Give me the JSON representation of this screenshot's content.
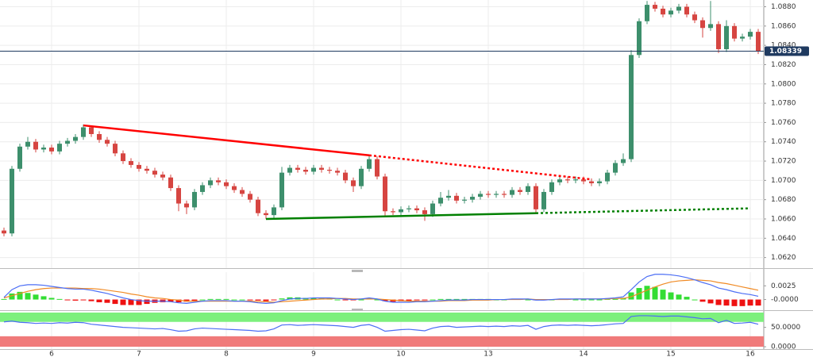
{
  "chart_data": [
    {
      "type": "candlestick",
      "categories": [
        null,
        null,
        null,
        null,
        null,
        null,
        "6",
        null,
        null,
        null,
        null,
        null,
        null,
        null,
        null,
        null,
        null,
        "7",
        null,
        null,
        null,
        null,
        null,
        null,
        null,
        null,
        null,
        null,
        "8",
        null,
        null,
        null,
        null,
        null,
        null,
        null,
        null,
        null,
        null,
        "9",
        null,
        null,
        null,
        null,
        null,
        null,
        null,
        null,
        null,
        null,
        "10",
        null,
        null,
        null,
        null,
        null,
        null,
        null,
        null,
        null,
        null,
        "13",
        null,
        null,
        null,
        null,
        null,
        null,
        null,
        null,
        null,
        null,
        null,
        "14",
        null,
        null,
        null,
        null,
        null,
        null,
        null,
        null,
        null,
        null,
        "15",
        null,
        null,
        null,
        null,
        null,
        null,
        null,
        null,
        null,
        "16",
        null
      ],
      "candles": {
        "open": [
          1.0648,
          1.0645,
          1.0712,
          1.0735,
          1.074,
          1.0732,
          1.0734,
          1.073,
          1.0738,
          1.0741,
          1.0745,
          1.0755,
          1.0748,
          1.0742,
          1.0738,
          1.0728,
          1.072,
          1.0716,
          1.0712,
          1.071,
          1.0706,
          1.0703,
          1.0692,
          1.0676,
          1.0672,
          1.0688,
          1.0695,
          1.07,
          1.0698,
          1.0694,
          1.069,
          1.0686,
          1.068,
          1.0666,
          1.0664,
          1.0672,
          1.0708,
          1.0713,
          1.0711,
          1.0709,
          1.0713,
          1.0711,
          1.071,
          1.0708,
          1.07,
          1.0694,
          1.0712,
          1.0722,
          1.0704,
          1.0668,
          1.0667,
          1.067,
          1.0671,
          1.0669,
          1.0665,
          1.0676,
          1.0682,
          1.0684,
          1.0679,
          1.068,
          1.0683,
          1.0686,
          1.0685,
          1.0686,
          1.0685,
          1.069,
          1.0688,
          1.0694,
          1.067,
          1.0688,
          1.0698,
          1.0701,
          1.07,
          1.0701,
          1.0699,
          1.0697,
          1.0699,
          1.0708,
          1.0718,
          1.0722,
          1.083,
          1.0865,
          1.0882,
          1.0878,
          1.0872,
          1.0876,
          1.088,
          1.0872,
          1.0866,
          1.0858,
          1.0862,
          1.0836,
          1.086,
          1.0847,
          1.0849,
          1.0854
        ],
        "high": [
          1.0651,
          1.0715,
          1.0738,
          1.0745,
          1.0743,
          1.0737,
          1.0737,
          1.0741,
          1.0744,
          1.0748,
          1.0758,
          1.0757,
          1.0751,
          1.0745,
          1.0741,
          1.0731,
          1.0723,
          1.0719,
          1.0715,
          1.0713,
          1.0709,
          1.0706,
          1.0695,
          1.0679,
          1.0691,
          1.0698,
          1.0703,
          1.0703,
          1.0701,
          1.0697,
          1.0693,
          1.0689,
          1.0683,
          1.0669,
          1.0675,
          1.0714,
          1.0716,
          1.0716,
          1.0714,
          1.0716,
          1.0716,
          1.0714,
          1.0713,
          1.0711,
          1.0703,
          1.0715,
          1.0726,
          1.0725,
          1.0707,
          1.0671,
          1.0673,
          1.0674,
          1.0674,
          1.0672,
          1.0679,
          1.0688,
          1.069,
          1.0687,
          1.0683,
          1.0686,
          1.0689,
          1.0689,
          1.0689,
          1.0689,
          1.0693,
          1.0693,
          1.0697,
          1.0697,
          1.0691,
          1.0701,
          1.0704,
          1.0704,
          1.0704,
          1.0704,
          1.0702,
          1.0702,
          1.0711,
          1.0721,
          1.0728,
          1.0835,
          1.0868,
          1.0886,
          1.0885,
          1.0881,
          1.0879,
          1.0883,
          1.0883,
          1.0875,
          1.0869,
          1.0886,
          1.0865,
          1.0866,
          1.0863,
          1.0852,
          1.0857,
          1.0857
        ],
        "low": [
          1.0642,
          1.0642,
          1.0709,
          1.0732,
          1.0729,
          1.0729,
          1.0727,
          1.0727,
          1.0735,
          1.0738,
          1.0742,
          1.0745,
          1.0739,
          1.0735,
          1.0725,
          1.0717,
          1.0713,
          1.0709,
          1.0707,
          1.0703,
          1.07,
          1.0689,
          1.0668,
          1.0665,
          1.0669,
          1.0685,
          1.0692,
          1.0695,
          1.0691,
          1.0687,
          1.0683,
          1.0677,
          1.0663,
          1.066,
          1.0661,
          1.0669,
          1.0705,
          1.0708,
          1.0706,
          1.0706,
          1.0708,
          1.0707,
          1.0705,
          1.0697,
          1.0688,
          1.0691,
          1.0709,
          1.0701,
          1.0663,
          1.0664,
          1.0664,
          1.0667,
          1.0666,
          1.0658,
          1.0662,
          1.0673,
          1.0679,
          1.0676,
          1.0676,
          1.0677,
          1.068,
          1.0682,
          1.0682,
          1.0682,
          1.0682,
          1.0685,
          1.0685,
          1.0666,
          1.0667,
          1.0685,
          1.0695,
          1.0697,
          1.0697,
          1.0696,
          1.0694,
          1.0694,
          1.0696,
          1.0705,
          1.0715,
          1.0719,
          1.0827,
          1.0862,
          1.0875,
          1.0869,
          1.0869,
          1.0873,
          1.0869,
          1.0863,
          1.0848,
          1.0855,
          1.0832,
          1.0833,
          1.0844,
          1.0844,
          1.0846,
          1.0831
        ],
        "close": [
          1.0645,
          1.0712,
          1.0735,
          1.074,
          1.0732,
          1.0734,
          1.073,
          1.0738,
          1.0741,
          1.0745,
          1.0755,
          1.0748,
          1.0742,
          1.0738,
          1.0728,
          1.072,
          1.0716,
          1.0712,
          1.071,
          1.0706,
          1.0703,
          1.0692,
          1.0676,
          1.0672,
          1.0688,
          1.0695,
          1.07,
          1.0698,
          1.0694,
          1.069,
          1.0686,
          1.068,
          1.0666,
          1.0664,
          1.0672,
          1.0708,
          1.0713,
          1.0711,
          1.0709,
          1.0713,
          1.0711,
          1.071,
          1.0708,
          1.07,
          1.0694,
          1.0712,
          1.0722,
          1.0704,
          1.0668,
          1.0667,
          1.067,
          1.0671,
          1.0669,
          1.0665,
          1.0676,
          1.0682,
          1.0684,
          1.0679,
          1.068,
          1.0683,
          1.0686,
          1.0685,
          1.0686,
          1.0685,
          1.069,
          1.0688,
          1.0694,
          1.067,
          1.0688,
          1.0698,
          1.0701,
          1.07,
          1.0701,
          1.0699,
          1.0697,
          1.0699,
          1.0708,
          1.0718,
          1.0722,
          1.083,
          1.0865,
          1.0882,
          1.0878,
          1.0872,
          1.0876,
          1.088,
          1.0872,
          1.0866,
          1.0858,
          1.0862,
          1.0836,
          1.086,
          1.0847,
          1.0849,
          1.0854,
          1.0834
        ]
      },
      "up_color": "#3d8f6c",
      "down_color": "#d64541",
      "ylim": [
        1.0609,
        1.0887
      ],
      "yticks": [
        {
          "value": 1.062,
          "label": "1.0620"
        },
        {
          "value": 1.064,
          "label": "1.0640"
        },
        {
          "value": 1.066,
          "label": "1.0660"
        },
        {
          "value": 1.068,
          "label": "1.0680"
        },
        {
          "value": 1.07,
          "label": "1.0700"
        },
        {
          "value": 1.072,
          "label": "1.0720"
        },
        {
          "value": 1.074,
          "label": "1.0740"
        },
        {
          "value": 1.076,
          "label": "1.0760"
        },
        {
          "value": 1.078,
          "label": "1.0780"
        },
        {
          "value": 1.08,
          "label": "1.0800"
        },
        {
          "value": 1.082,
          "label": "1.0820"
        },
        {
          "value": 1.084,
          "label": "1.0840"
        },
        {
          "value": 1.086,
          "label": "1.0860"
        },
        {
          "value": 1.088,
          "label": "1.0880"
        }
      ],
      "grid": true,
      "last_price": 1.08339,
      "last_price_color": "#1f3a60",
      "trendlines": [
        {
          "color": "#ff0000",
          "from": [
            10,
            1.0757
          ],
          "to": [
            46,
            1.0726
          ],
          "extend_to": [
            74,
            1.0701
          ]
        },
        {
          "color": "#008000",
          "from": [
            33,
            1.066
          ],
          "to": [
            67,
            1.0666
          ],
          "extend_to": [
            94,
            1.0671
          ]
        }
      ]
    },
    {
      "type": "macd",
      "macd": [
        0.0004,
        0.0018,
        0.0025,
        0.0027,
        0.0027,
        0.0026,
        0.0024,
        0.0022,
        0.002,
        0.0019,
        0.0019,
        0.0017,
        0.0014,
        0.0011,
        0.0007,
        0.0003,
        0.0,
        -0.0002,
        -0.0003,
        -0.0003,
        -0.0003,
        -0.0004,
        -0.0006,
        -0.0007,
        -0.0005,
        -0.0003,
        -0.0002,
        -0.0002,
        -0.0002,
        -0.0003,
        -0.0003,
        -0.0004,
        -0.0006,
        -0.0007,
        -0.0006,
        -0.0002,
        0.0001,
        0.0002,
        0.0002,
        0.0003,
        0.0003,
        0.0003,
        0.0002,
        0.0001,
        0.0,
        0.0001,
        0.0003,
        0.0001,
        -0.0003,
        -0.0005,
        -0.0005,
        -0.0005,
        -0.0004,
        -0.0004,
        -0.0003,
        -0.0002,
        -0.0001,
        -0.0001,
        -0.0001,
        0.0,
        0.0,
        0.0,
        0.0,
        0.0,
        0.0001,
        0.0001,
        0.0001,
        -0.0001,
        -0.0001,
        0.0,
        0.0001,
        0.0001,
        0.0001,
        0.0001,
        0.0001,
        0.0001,
        0.0002,
        0.0003,
        0.0005,
        0.0018,
        0.0032,
        0.0042,
        0.0046,
        0.0046,
        0.0045,
        0.0043,
        0.004,
        0.0036,
        0.0031,
        0.0027,
        0.0021,
        0.0018,
        0.0014,
        0.0011,
        0.0009,
        0.0006
      ],
      "signal": [
        0.0003,
        0.0007,
        0.0011,
        0.0015,
        0.0018,
        0.002,
        0.0021,
        0.0021,
        0.0021,
        0.0021,
        0.002,
        0.002,
        0.0019,
        0.0017,
        0.0015,
        0.0013,
        0.001,
        0.0008,
        0.0005,
        0.0003,
        0.0002,
        0.0,
        -0.0001,
        -0.0003,
        -0.0003,
        -0.0003,
        -0.0003,
        -0.0003,
        -0.0003,
        -0.0003,
        -0.0003,
        -0.0003,
        -0.0004,
        -0.0004,
        -0.0005,
        -0.0004,
        -0.0003,
        -0.0002,
        -0.0001,
        0.0,
        0.0001,
        0.0001,
        0.0002,
        0.0002,
        0.0001,
        0.0001,
        0.0001,
        0.0001,
        0.0,
        -0.0001,
        -0.0002,
        -0.0003,
        -0.0003,
        -0.0003,
        -0.0003,
        -0.0003,
        -0.0002,
        -0.0002,
        -0.0002,
        -0.0001,
        -0.0001,
        -0.0001,
        0.0,
        0.0,
        0.0,
        0.0,
        0.0001,
        0.0,
        0.0,
        0.0,
        0.0,
        0.0,
        0.0001,
        0.0001,
        0.0001,
        0.0001,
        0.0001,
        0.0002,
        0.0002,
        0.0005,
        0.0011,
        0.0017,
        0.0023,
        0.0028,
        0.0032,
        0.0034,
        0.0035,
        0.0036,
        0.0035,
        0.0034,
        0.0031,
        0.0029,
        0.0026,
        0.0023,
        0.002,
        0.0017
      ],
      "histogram": [
        0.0001,
        0.0011,
        0.0014,
        0.0012,
        0.0009,
        0.0006,
        0.0003,
        0.0001,
        -0.0001,
        -0.0002,
        -0.0001,
        -0.0003,
        -0.0005,
        -0.0006,
        -0.0008,
        -0.001,
        -0.001,
        -0.001,
        -0.0008,
        -0.0006,
        -0.0005,
        -0.0004,
        -0.0005,
        -0.0004,
        -0.0002,
        0.0,
        0.0001,
        0.0001,
        0.0001,
        0.0,
        0.0,
        -0.0001,
        -0.0002,
        -0.0003,
        -0.0001,
        0.0002,
        0.0004,
        0.0004,
        0.0003,
        0.0003,
        0.0002,
        0.0002,
        0.0,
        -0.0001,
        -0.0001,
        0.0,
        0.0002,
        0.0,
        -0.0003,
        -0.0004,
        -0.0003,
        -0.0002,
        -0.0001,
        -0.0001,
        0.0,
        0.0001,
        0.0001,
        0.0001,
        0.0001,
        0.0001,
        0.0001,
        0.0001,
        0.0,
        0.0,
        0.0001,
        0.0001,
        0.0,
        -0.0001,
        -0.0001,
        0.0,
        0.0001,
        0.0001,
        0.0,
        0.0,
        0.0,
        0.0,
        0.0001,
        0.0001,
        0.0003,
        0.0013,
        0.0021,
        0.0025,
        0.0023,
        0.0018,
        0.0013,
        0.0009,
        0.0005,
        0.0,
        -0.0004,
        -0.0007,
        -0.001,
        -0.0011,
        -0.0012,
        -0.0012,
        -0.0011,
        -0.0011
      ],
      "macd_color": "#4c6ef5",
      "signal_color": "#f08a24",
      "positive_color": "#33dd33",
      "negative_color": "#ee1111",
      "ylim": [
        -0.0018,
        0.005
      ],
      "yticks": [
        0.0025,
        {
          "value": 0,
          "label": "-0.0000"
        }
      ]
    },
    {
      "type": "line",
      "values": [
        64,
        66,
        63,
        62,
        60,
        61,
        60,
        62,
        61,
        63,
        62,
        58,
        56,
        54,
        52,
        50,
        49,
        48,
        47,
        46,
        47,
        44,
        40,
        41,
        46,
        48,
        47,
        46,
        45,
        44,
        43,
        42,
        40,
        41,
        46,
        56,
        57,
        55,
        56,
        57,
        56,
        55,
        54,
        52,
        50,
        55,
        57,
        50,
        40,
        42,
        44,
        45,
        43,
        41,
        48,
        52,
        53,
        50,
        51,
        52,
        53,
        52,
        53,
        52,
        54,
        53,
        55,
        45,
        52,
        55,
        56,
        55,
        56,
        55,
        54,
        55,
        57,
        59,
        60,
        78,
        80,
        80,
        79,
        78,
        79,
        79,
        77,
        75,
        72,
        73,
        62,
        68,
        60,
        61,
        63,
        58
      ],
      "color": "#4c6ef5",
      "zones": [
        {
          "from": 64,
          "to": 88,
          "color": "#7df07d"
        },
        {
          "from": 0,
          "to": 27,
          "color": "#f07a7a"
        }
      ],
      "ylim": [
        -6,
        88
      ],
      "yticks": [
        {
          "value": 50,
          "label": "50.0000"
        },
        {
          "value": 0,
          "label": "0.0000"
        }
      ]
    }
  ]
}
